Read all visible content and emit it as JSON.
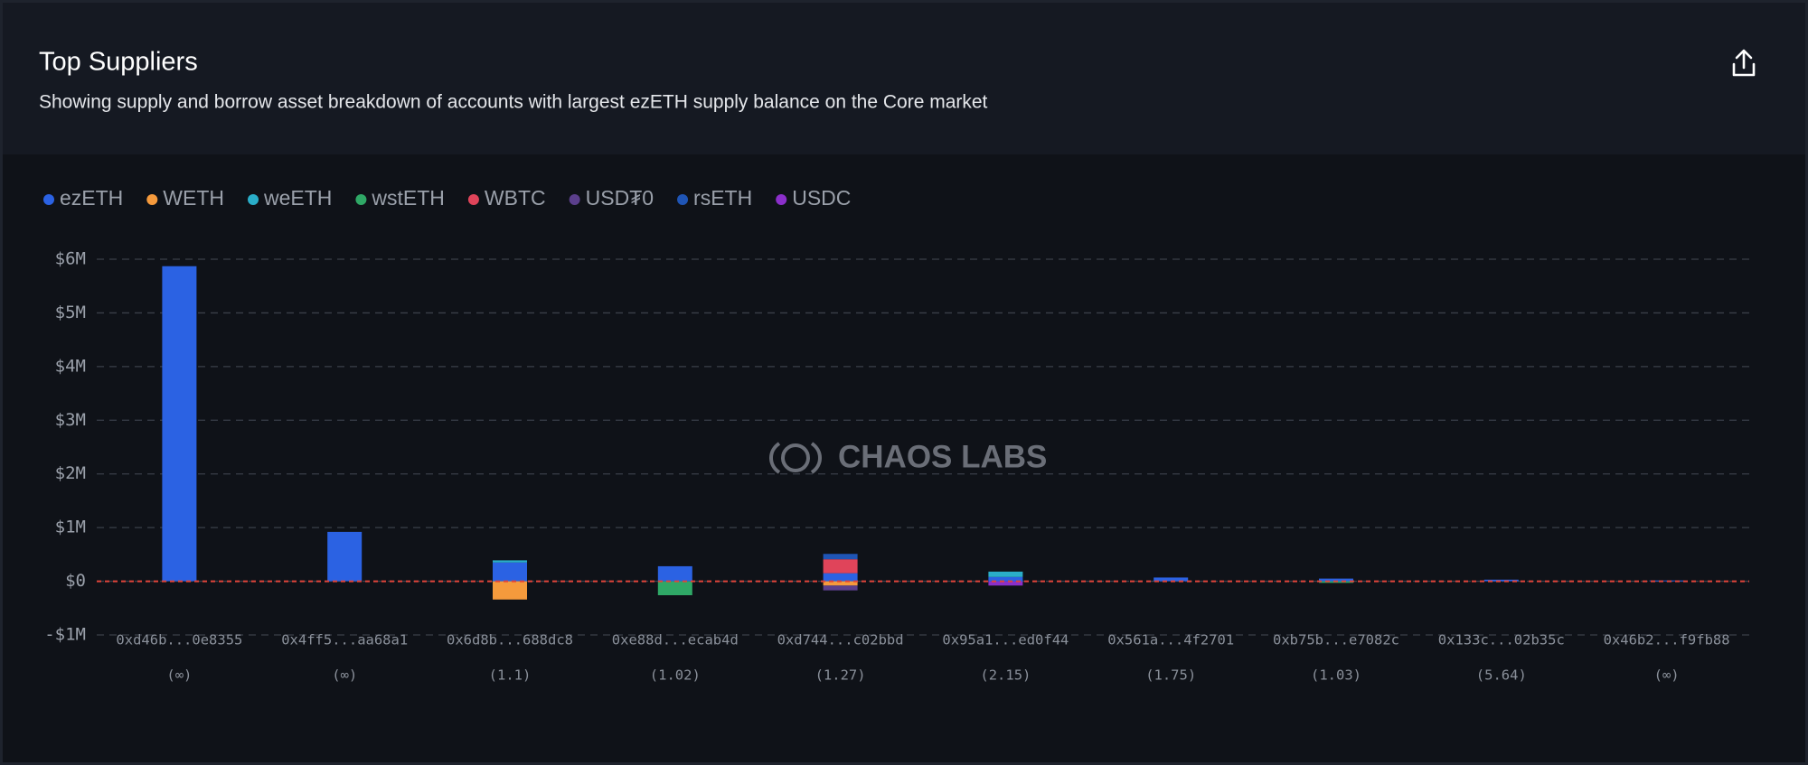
{
  "chart_data": {
    "type": "stacked-bar",
    "title": "Top Suppliers",
    "subtitle": "Showing supply and borrow asset breakdown of accounts with largest ezETH supply balance on the Core market",
    "watermark": "CHAOS LABS",
    "categories": [
      "0xd46b...0e8355",
      "0x4ff5...aa68a1",
      "0x6d8b...688dc8",
      "0xe88d...ecab4d",
      "0xd744...c02bbd",
      "0x95a1...ed0f44",
      "0x561a...4f2701",
      "0xb75b...e7082c",
      "0x133c...02b35c",
      "0x46b2...f9fb88"
    ],
    "health_factors": [
      "(∞)",
      "(∞)",
      "(1.1)",
      "(1.02)",
      "(1.27)",
      "(2.15)",
      "(1.75)",
      "(1.03)",
      "(5.64)",
      "(∞)"
    ],
    "series": [
      {
        "name": "ezETH",
        "color": "#2b62e3",
        "values": [
          5870000,
          920000,
          350000,
          280000,
          150000,
          80000,
          70000,
          50000,
          30000,
          15000
        ]
      },
      {
        "name": "WETH",
        "color": "#f59a3c",
        "values": [
          0,
          0,
          -340000,
          0,
          -80000,
          0,
          0,
          0,
          0,
          0
        ]
      },
      {
        "name": "weETH",
        "color": "#2aaec9",
        "values": [
          0,
          0,
          40000,
          0,
          0,
          100000,
          0,
          0,
          0,
          0
        ]
      },
      {
        "name": "wstETH",
        "color": "#2fa866",
        "values": [
          0,
          0,
          0,
          -260000,
          0,
          0,
          0,
          -30000,
          0,
          0
        ]
      },
      {
        "name": "WBTC",
        "color": "#e0445a",
        "values": [
          0,
          0,
          0,
          0,
          260000,
          0,
          0,
          0,
          0,
          0
        ]
      },
      {
        "name": "USD₮0",
        "color": "#5b3f8c",
        "values": [
          0,
          0,
          0,
          0,
          -90000,
          0,
          0,
          0,
          0,
          0
        ]
      },
      {
        "name": "rsETH",
        "color": "#1f55b5",
        "values": [
          0,
          0,
          0,
          0,
          100000,
          0,
          0,
          0,
          0,
          0
        ]
      },
      {
        "name": "USDC",
        "color": "#8b2fca",
        "values": [
          0,
          0,
          0,
          0,
          0,
          -80000,
          0,
          0,
          0,
          0
        ]
      }
    ],
    "ylim": [
      -1000000,
      6000000
    ],
    "yticks": [
      {
        "value": -1000000,
        "label": "-$1M"
      },
      {
        "value": 0,
        "label": "$0"
      },
      {
        "value": 1000000,
        "label": "$1M"
      },
      {
        "value": 2000000,
        "label": "$2M"
      },
      {
        "value": 3000000,
        "label": "$3M"
      },
      {
        "value": 4000000,
        "label": "$4M"
      },
      {
        "value": 5000000,
        "label": "$5M"
      },
      {
        "value": 6000000,
        "label": "$6M"
      }
    ],
    "grid": true
  }
}
